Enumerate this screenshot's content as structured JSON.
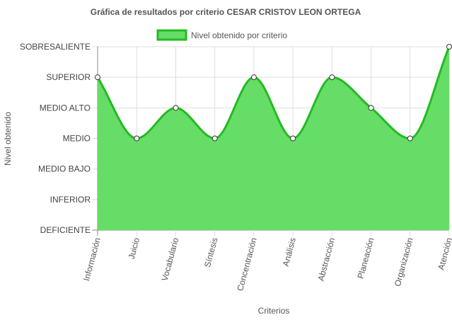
{
  "chart_data": {
    "type": "area",
    "title": "Gráfica de resultados por criterio CESAR CRISTOV LEON ORTEGA",
    "xlabel": "Criterios",
    "ylabel": "Nivel obtenido",
    "legend_position": "top",
    "grid": true,
    "y_levels": [
      "DEFICIENTE",
      "INFERIOR",
      "MEDIO BAJO",
      "MEDIO",
      "MEDIO ALTO",
      "SUPERIOR",
      "SOBRESALIENTE"
    ],
    "ylim": [
      0,
      6
    ],
    "categories": [
      "Información",
      "Juicio",
      "Vocabulario",
      "Síntesis",
      "Concentración",
      "Análisis",
      "Abstracción",
      "Planeación",
      "Organización",
      "Atención"
    ],
    "series": [
      {
        "name": "Nivel obtenido por criterio",
        "values": [
          5,
          3,
          4,
          3,
          5,
          3,
          5,
          4,
          3,
          6
        ],
        "fill_color": "#66dd66",
        "line_color": "#22bb22"
      }
    ]
  }
}
